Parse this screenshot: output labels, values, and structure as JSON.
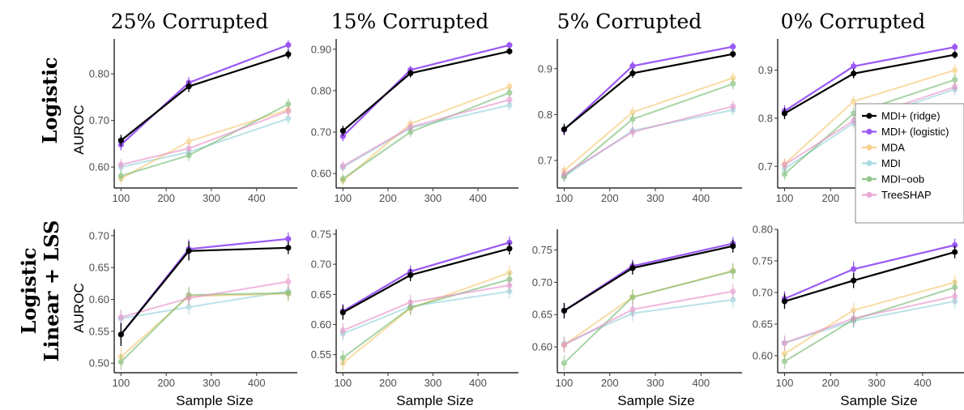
{
  "figure": {
    "column_titles": [
      "25% Corrupted",
      "15% Corrupted",
      "5% Corrupted",
      "0% Corrupted"
    ],
    "row_titles": [
      [
        "Logistic"
      ],
      [
        "Logistic",
        "Linear + LSS"
      ]
    ],
    "y_axis_label": "AUROC",
    "x_axis_label": "Sample Size"
  },
  "legend": {
    "placement": "inside right of top-right panel",
    "entries": [
      {
        "name": "MDI+ (ridge)",
        "color": "#000000"
      },
      {
        "name": "MDI+ (logistic)",
        "color": "#9b59f5"
      },
      {
        "name": "MDA",
        "color": "#f5c56b"
      },
      {
        "name": "MDI",
        "color": "#8fd0d8"
      },
      {
        "name": "MDI−oob",
        "color": "#6fb86b"
      },
      {
        "name": "TreeSHAP",
        "color": "#e58bc6"
      }
    ]
  },
  "chart_data": [
    {
      "type": "line",
      "row": 0,
      "col": 0,
      "x": [
        100,
        250,
        470
      ],
      "xlim": [
        85,
        490
      ],
      "x_ticks": [
        100,
        200,
        300,
        400
      ],
      "ylim": [
        0.555,
        0.875
      ],
      "y_ticks": [
        0.6,
        0.7,
        0.8
      ],
      "series": [
        {
          "name": "MDI+ (ridge)",
          "values": [
            0.657,
            0.773,
            0.842
          ],
          "err": [
            0.012,
            0.012,
            0.01
          ]
        },
        {
          "name": "MDI+ (logistic)",
          "values": [
            0.648,
            0.781,
            0.862
          ],
          "err": [
            0.012,
            0.012,
            0.01
          ]
        },
        {
          "name": "MDA",
          "values": [
            0.575,
            0.655,
            0.723
          ],
          "err": [
            0.012,
            0.012,
            0.012
          ]
        },
        {
          "name": "MDI",
          "values": [
            0.6,
            0.632,
            0.704
          ],
          "err": [
            0.012,
            0.012,
            0.012
          ]
        },
        {
          "name": "MDI−oob",
          "values": [
            0.581,
            0.625,
            0.735
          ],
          "err": [
            0.012,
            0.012,
            0.012
          ]
        },
        {
          "name": "TreeSHAP",
          "values": [
            0.605,
            0.64,
            0.72
          ],
          "err": [
            0.012,
            0.012,
            0.012
          ]
        }
      ]
    },
    {
      "type": "line",
      "row": 0,
      "col": 1,
      "x": [
        100,
        250,
        470
      ],
      "xlim": [
        85,
        490
      ],
      "x_ticks": [
        100,
        200,
        300,
        400
      ],
      "ylim": [
        0.565,
        0.925
      ],
      "y_ticks": [
        0.6,
        0.7,
        0.8,
        0.9
      ],
      "series": [
        {
          "name": "MDI+ (ridge)",
          "values": [
            0.703,
            0.842,
            0.895
          ],
          "err": [
            0.012,
            0.01,
            0.008
          ]
        },
        {
          "name": "MDI+ (logistic)",
          "values": [
            0.69,
            0.85,
            0.91
          ],
          "err": [
            0.012,
            0.01,
            0.008
          ]
        },
        {
          "name": "MDA",
          "values": [
            0.583,
            0.72,
            0.81
          ],
          "err": [
            0.012,
            0.012,
            0.012
          ]
        },
        {
          "name": "MDI",
          "values": [
            0.615,
            0.71,
            0.765
          ],
          "err": [
            0.012,
            0.012,
            0.012
          ]
        },
        {
          "name": "MDI−oob",
          "values": [
            0.587,
            0.7,
            0.795
          ],
          "err": [
            0.012,
            0.012,
            0.012
          ]
        },
        {
          "name": "TreeSHAP",
          "values": [
            0.618,
            0.712,
            0.778
          ],
          "err": [
            0.012,
            0.012,
            0.012
          ]
        }
      ]
    },
    {
      "type": "line",
      "row": 0,
      "col": 2,
      "x": [
        100,
        250,
        470
      ],
      "xlim": [
        85,
        490
      ],
      "x_ticks": [
        100,
        200,
        300,
        400
      ],
      "ylim": [
        0.64,
        0.965
      ],
      "y_ticks": [
        0.7,
        0.8,
        0.9
      ],
      "series": [
        {
          "name": "MDI+ (ridge)",
          "values": [
            0.768,
            0.89,
            0.932
          ],
          "err": [
            0.012,
            0.01,
            0.008
          ]
        },
        {
          "name": "MDI+ (logistic)",
          "values": [
            0.767,
            0.906,
            0.948
          ],
          "err": [
            0.012,
            0.01,
            0.008
          ]
        },
        {
          "name": "MDA",
          "values": [
            0.678,
            0.805,
            0.88
          ],
          "err": [
            0.012,
            0.012,
            0.012
          ]
        },
        {
          "name": "MDI",
          "values": [
            0.665,
            0.765,
            0.81
          ],
          "err": [
            0.012,
            0.012,
            0.012
          ]
        },
        {
          "name": "MDI−oob",
          "values": [
            0.665,
            0.79,
            0.867
          ],
          "err": [
            0.012,
            0.012,
            0.012
          ]
        },
        {
          "name": "TreeSHAP",
          "values": [
            0.67,
            0.762,
            0.818
          ],
          "err": [
            0.012,
            0.012,
            0.012
          ]
        }
      ]
    },
    {
      "type": "line",
      "row": 0,
      "col": 3,
      "x": [
        100,
        250,
        470
      ],
      "xlim": [
        85,
        490
      ],
      "x_ticks": [
        100,
        200,
        300,
        400
      ],
      "ylim": [
        0.655,
        0.965
      ],
      "y_ticks": [
        0.7,
        0.8,
        0.9
      ],
      "series": [
        {
          "name": "MDI+ (ridge)",
          "values": [
            0.81,
            0.893,
            0.932
          ],
          "err": [
            0.012,
            0.01,
            0.008
          ]
        },
        {
          "name": "MDI+ (logistic)",
          "values": [
            0.815,
            0.908,
            0.948
          ],
          "err": [
            0.012,
            0.01,
            0.008
          ]
        },
        {
          "name": "MDA",
          "values": [
            0.705,
            0.835,
            0.9
          ],
          "err": [
            0.012,
            0.012,
            0.012
          ]
        },
        {
          "name": "MDI",
          "values": [
            0.695,
            0.79,
            0.86
          ],
          "err": [
            0.012,
            0.012,
            0.012
          ]
        },
        {
          "name": "MDI−oob",
          "values": [
            0.684,
            0.81,
            0.88
          ],
          "err": [
            0.012,
            0.012,
            0.012
          ]
        },
        {
          "name": "TreeSHAP",
          "values": [
            0.703,
            0.795,
            0.865
          ],
          "err": [
            0.012,
            0.012,
            0.012
          ]
        }
      ]
    },
    {
      "type": "line",
      "row": 1,
      "col": 0,
      "x": [
        100,
        250,
        470
      ],
      "xlim": [
        85,
        490
      ],
      "x_ticks": [
        100,
        200,
        300,
        400
      ],
      "ylim": [
        0.485,
        0.71
      ],
      "y_ticks": [
        0.5,
        0.55,
        0.6,
        0.65,
        0.7
      ],
      "series": [
        {
          "name": "MDI+ (ridge)",
          "values": [
            0.545,
            0.676,
            0.681
          ],
          "err": [
            0.018,
            0.015,
            0.01
          ]
        },
        {
          "name": "MDI+ (logistic)",
          "values": [
            0.545,
            0.679,
            0.695
          ],
          "err": [
            0.018,
            0.015,
            0.01
          ]
        },
        {
          "name": "MDA",
          "values": [
            0.51,
            0.605,
            0.609
          ],
          "err": [
            0.015,
            0.015,
            0.012
          ]
        },
        {
          "name": "MDI",
          "values": [
            0.57,
            0.588,
            0.613
          ],
          "err": [
            0.012,
            0.012,
            0.012
          ]
        },
        {
          "name": "MDI−oob",
          "values": [
            0.502,
            0.607,
            0.61
          ],
          "err": [
            0.012,
            0.012,
            0.012
          ]
        },
        {
          "name": "TreeSHAP",
          "values": [
            0.572,
            0.602,
            0.628
          ],
          "err": [
            0.012,
            0.012,
            0.012
          ]
        }
      ]
    },
    {
      "type": "line",
      "row": 1,
      "col": 1,
      "x": [
        100,
        250,
        470
      ],
      "xlim": [
        85,
        490
      ],
      "x_ticks": [
        100,
        200,
        300,
        400
      ],
      "ylim": [
        0.52,
        0.758
      ],
      "y_ticks": [
        0.55,
        0.6,
        0.65,
        0.7,
        0.75
      ],
      "series": [
        {
          "name": "MDI+ (ridge)",
          "values": [
            0.62,
            0.682,
            0.726
          ],
          "err": [
            0.012,
            0.01,
            0.01
          ]
        },
        {
          "name": "MDI+ (logistic)",
          "values": [
            0.622,
            0.688,
            0.736
          ],
          "err": [
            0.012,
            0.01,
            0.01
          ]
        },
        {
          "name": "MDA",
          "values": [
            0.536,
            0.627,
            0.686
          ],
          "err": [
            0.012,
            0.012,
            0.012
          ]
        },
        {
          "name": "MDI",
          "values": [
            0.585,
            0.63,
            0.655
          ],
          "err": [
            0.012,
            0.012,
            0.012
          ]
        },
        {
          "name": "MDI−oob",
          "values": [
            0.545,
            0.628,
            0.675
          ],
          "err": [
            0.012,
            0.012,
            0.012
          ]
        },
        {
          "name": "TreeSHAP",
          "values": [
            0.59,
            0.637,
            0.665
          ],
          "err": [
            0.012,
            0.012,
            0.012
          ]
        }
      ]
    },
    {
      "type": "line",
      "row": 1,
      "col": 2,
      "x": [
        100,
        250,
        470
      ],
      "xlim": [
        85,
        490
      ],
      "x_ticks": [
        100,
        200,
        300,
        400
      ],
      "ylim": [
        0.56,
        0.782
      ],
      "y_ticks": [
        0.6,
        0.65,
        0.7,
        0.75
      ],
      "series": [
        {
          "name": "MDI+ (ridge)",
          "values": [
            0.656,
            0.722,
            0.756
          ],
          "err": [
            0.012,
            0.01,
            0.01
          ]
        },
        {
          "name": "MDI+ (logistic)",
          "values": [
            0.656,
            0.725,
            0.76
          ],
          "err": [
            0.012,
            0.01,
            0.01
          ]
        },
        {
          "name": "MDA",
          "values": [
            0.603,
            0.677,
            0.718
          ],
          "err": [
            0.012,
            0.012,
            0.012
          ]
        },
        {
          "name": "MDI",
          "values": [
            0.605,
            0.652,
            0.673
          ],
          "err": [
            0.012,
            0.012,
            0.012
          ]
        },
        {
          "name": "MDI−oob",
          "values": [
            0.575,
            0.677,
            0.717
          ],
          "err": [
            0.012,
            0.012,
            0.012
          ]
        },
        {
          "name": "TreeSHAP",
          "values": [
            0.603,
            0.658,
            0.686
          ],
          "err": [
            0.012,
            0.012,
            0.012
          ]
        }
      ]
    },
    {
      "type": "line",
      "row": 1,
      "col": 3,
      "x": [
        100,
        250,
        470
      ],
      "xlim": [
        85,
        490
      ],
      "x_ticks": [
        100,
        200,
        300,
        400
      ],
      "ylim": [
        0.573,
        0.8
      ],
      "y_ticks": [
        0.6,
        0.65,
        0.7,
        0.75,
        0.8
      ],
      "series": [
        {
          "name": "MDI+ (ridge)",
          "values": [
            0.686,
            0.719,
            0.764
          ],
          "err": [
            0.012,
            0.012,
            0.01
          ]
        },
        {
          "name": "MDI+ (logistic)",
          "values": [
            0.69,
            0.737,
            0.775
          ],
          "err": [
            0.012,
            0.012,
            0.01
          ]
        },
        {
          "name": "MDA",
          "values": [
            0.603,
            0.672,
            0.716
          ],
          "err": [
            0.012,
            0.012,
            0.012
          ]
        },
        {
          "name": "MDI",
          "values": [
            0.62,
            0.655,
            0.686
          ],
          "err": [
            0.012,
            0.012,
            0.012
          ]
        },
        {
          "name": "MDI−oob",
          "values": [
            0.591,
            0.657,
            0.708
          ],
          "err": [
            0.012,
            0.012,
            0.012
          ]
        },
        {
          "name": "TreeSHAP",
          "values": [
            0.62,
            0.659,
            0.694
          ],
          "err": [
            0.012,
            0.012,
            0.012
          ]
        }
      ]
    }
  ]
}
